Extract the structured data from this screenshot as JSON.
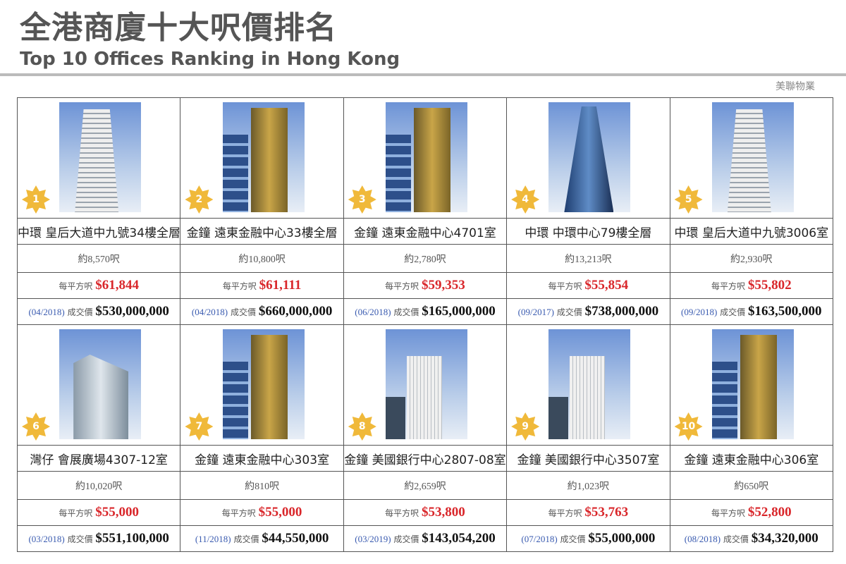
{
  "header": {
    "title_zh": "全港商廈十大呎價排名",
    "title_en": "Top 10 Offices Ranking in Hong Kong"
  },
  "labels": {
    "psf_prefix": "每平方呎",
    "price_prefix": "成交價"
  },
  "watermark": "美聯物業",
  "colors": {
    "badge": "#f0b93a",
    "psf": "#d9262a",
    "date": "#3a5bb0"
  },
  "offices": [
    {
      "rank": "1",
      "name": "中環 皇后大道中九號34樓全層",
      "area": "約8,570呎",
      "psf": "$61,844",
      "date": "(04/2018)",
      "price": "$530,000,000",
      "photo": "w"
    },
    {
      "rank": "2",
      "name": "金鐘 遠東金融中心33樓全層",
      "area": "約10,800呎",
      "psf": "$61,111",
      "date": "(04/2018)",
      "price": "$660,000,000",
      "photo": "g"
    },
    {
      "rank": "3",
      "name": "金鐘 遠東金融中心4701室",
      "area": "約2,780呎",
      "psf": "$59,353",
      "date": "(06/2018)",
      "price": "$165,000,000",
      "photo": "g"
    },
    {
      "rank": "4",
      "name": "中環 中環中心79樓全層",
      "area": "約13,213呎",
      "psf": "$55,854",
      "date": "(09/2017)",
      "price": "$738,000,000",
      "photo": "b"
    },
    {
      "rank": "5",
      "name": "中環 皇后大道中九號3006室",
      "area": "約2,930呎",
      "psf": "$55,802",
      "date": "(09/2018)",
      "price": "$163,500,000",
      "photo": "w"
    },
    {
      "rank": "6",
      "name": "灣仔 會展廣場4307-12室",
      "area": "約10,020呎",
      "psf": "$55,000",
      "date": "(03/2018)",
      "price": "$551,100,000",
      "photo": "s"
    },
    {
      "rank": "7",
      "name": "金鐘 遠東金融中心303室",
      "area": "約810呎",
      "psf": "$55,000",
      "date": "(11/2018)",
      "price": "$44,550,000",
      "photo": "g"
    },
    {
      "rank": "8",
      "name": "金鐘 美國銀行中心2807-08室",
      "area": "約2,659呎",
      "psf": "$53,800",
      "date": "(03/2019)",
      "price": "$143,054,200",
      "photo": "c"
    },
    {
      "rank": "9",
      "name": "金鐘 美國銀行中心3507室",
      "area": "約1,023呎",
      "psf": "$53,763",
      "date": "(07/2018)",
      "price": "$55,000,000",
      "photo": "c"
    },
    {
      "rank": "10",
      "name": "金鐘 遠東金融中心306室",
      "area": "約650呎",
      "psf": "$52,800",
      "date": "(08/2018)",
      "price": "$34,320,000",
      "photo": "g"
    }
  ]
}
